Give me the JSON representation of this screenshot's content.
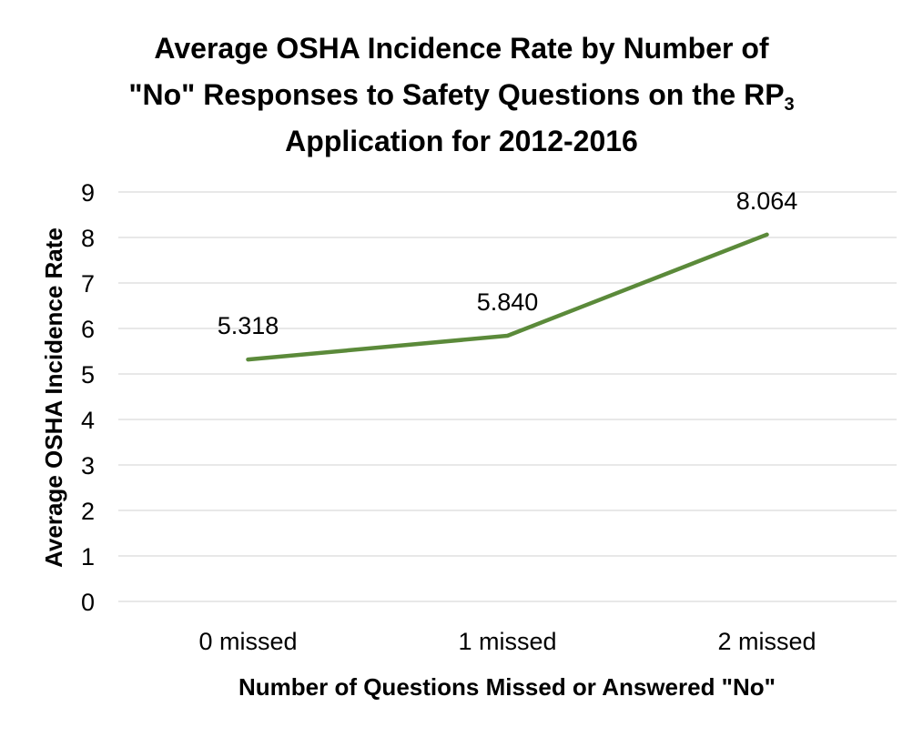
{
  "chart_data": {
    "type": "line",
    "title_lines": [
      "Average OSHA Incidence Rate by Number of",
      "\"No\" Responses to Safety Questions on the RP",
      "Application for 2012-2016"
    ],
    "title_subscript": "3",
    "categories": [
      "0 missed",
      "1 missed",
      "2 missed"
    ],
    "series": [
      {
        "values": [
          5.318,
          5.84,
          8.064
        ],
        "data_labels": [
          "5.318",
          "5.840",
          "8.064"
        ],
        "color": "#5b8a3a"
      }
    ],
    "xlabel": "Number of Questions Missed or Answered \"No\"",
    "ylabel": "Average OSHA Incidence Rate",
    "ylim": [
      0,
      9
    ],
    "yticks": [
      "0",
      "1",
      "2",
      "3",
      "4",
      "5",
      "6",
      "7",
      "8",
      "9"
    ],
    "grid": true,
    "gridline_color": "#d9d9d9",
    "legend": "none"
  }
}
